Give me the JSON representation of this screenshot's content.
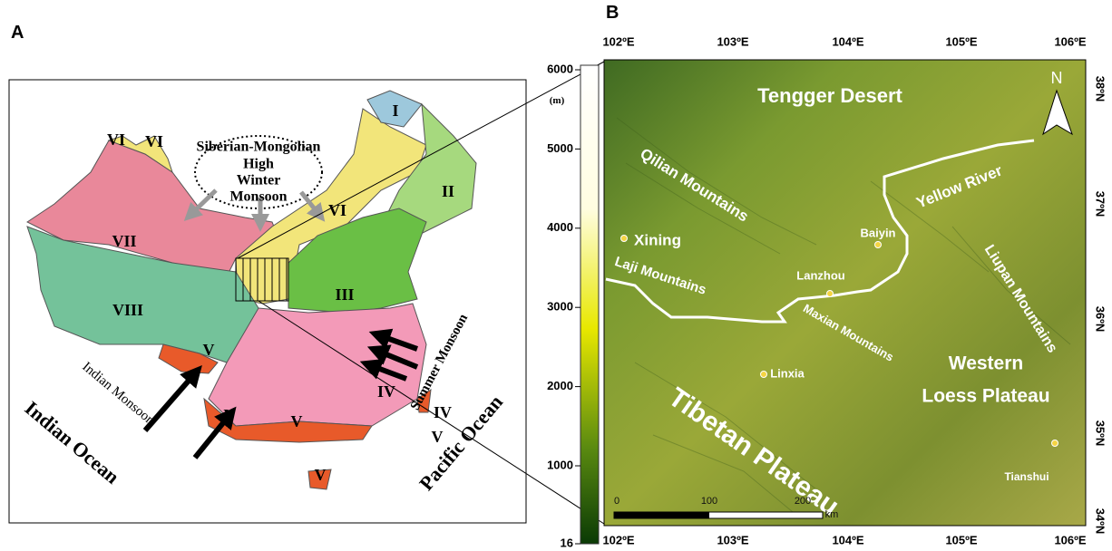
{
  "panel_a": {
    "label": "A",
    "high": [
      "Siberian-Mongolian",
      "High"
    ],
    "winter": [
      "Winter",
      "Monsoon"
    ],
    "regions": [
      "I",
      "II",
      "III",
      "IV",
      "IV",
      "V",
      "V",
      "V",
      "V",
      "V",
      "VI",
      "VI",
      "VI",
      "VII",
      "VIII"
    ],
    "indian_monsoon": "Indian Monsoon",
    "summer_monsoon": "Summer Monsoon",
    "indian_ocean": "Indian Ocean",
    "pacific_ocean": "Pacific Ocean"
  },
  "panel_b": {
    "label": "B",
    "colorbar": {
      "unit": "(m)",
      "ticks": [
        6000,
        5000,
        4000,
        3000,
        2000,
        1000,
        16
      ]
    },
    "lon_top": [
      "102ºE",
      "103ºE",
      "104ºE",
      "105ºE",
      "106ºE"
    ],
    "lon_bottom": [
      "102ºE",
      "103ºE",
      "104ºE",
      "105ºE",
      "106ºE"
    ],
    "lat": [
      "38ºN",
      "37ºN",
      "36ºN",
      "35ºN",
      "34ºN"
    ],
    "places": [
      "Tengger Desert",
      "Qilian Mountains",
      "Yellow River",
      "Liupan Mountains",
      "Xining",
      "Baiyin",
      "Lanzhou",
      "Laji Mountains",
      "Maxian Mountains",
      "Linxia",
      "Western",
      "Loess Plateau",
      "Tibetan Plateau",
      "Tianshui"
    ],
    "north": "N",
    "scale": [
      0,
      100,
      200
    ],
    "scale_unit": "km"
  }
}
